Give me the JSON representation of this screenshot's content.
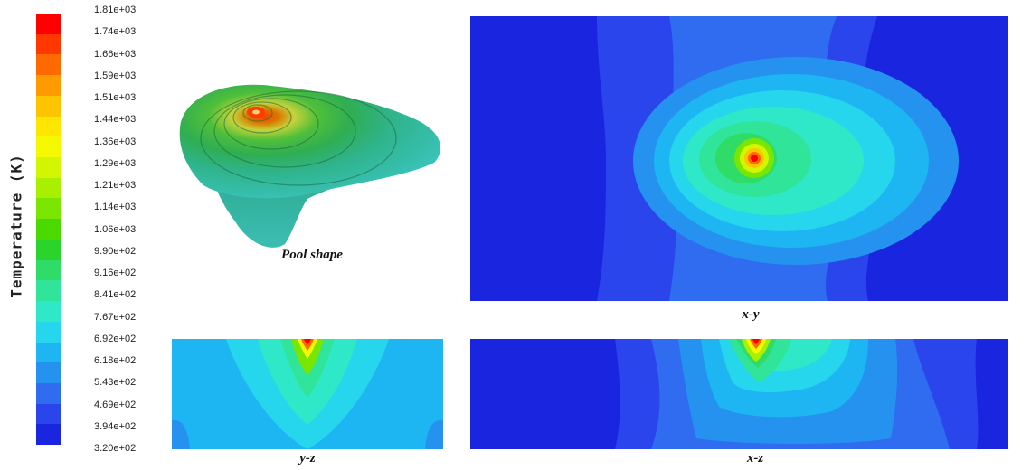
{
  "colorbar": {
    "title": "Temperature (K)",
    "ticks": [
      "1.81e+03",
      "1.74e+03",
      "1.66e+03",
      "1.59e+03",
      "1.51e+03",
      "1.44e+03",
      "1.36e+03",
      "1.29e+03",
      "1.21e+03",
      "1.14e+03",
      "1.06e+03",
      "9.90e+02",
      "9.16e+02",
      "8.41e+02",
      "7.67e+02",
      "6.92e+02",
      "6.18e+02",
      "5.43e+02",
      "4.69e+02",
      "3.94e+02",
      "3.20e+02"
    ],
    "colors": [
      "#ff0000",
      "#ff3800",
      "#ff6a00",
      "#ff9a00",
      "#ffc400",
      "#ffe600",
      "#f4f800",
      "#d2f500",
      "#a8ef00",
      "#7ae600",
      "#4ad900",
      "#2bd42a",
      "#2fdc68",
      "#30e49a",
      "#2fe8c8",
      "#25d6ec",
      "#1db5f2",
      "#2592f0",
      "#2f6cf0",
      "#2a45ec",
      "#1a25e0"
    ]
  },
  "panels": {
    "pool_caption": "Pool shape",
    "xy_caption": "x-y",
    "yz_caption": "y-z",
    "xz_caption": "x-z"
  }
}
